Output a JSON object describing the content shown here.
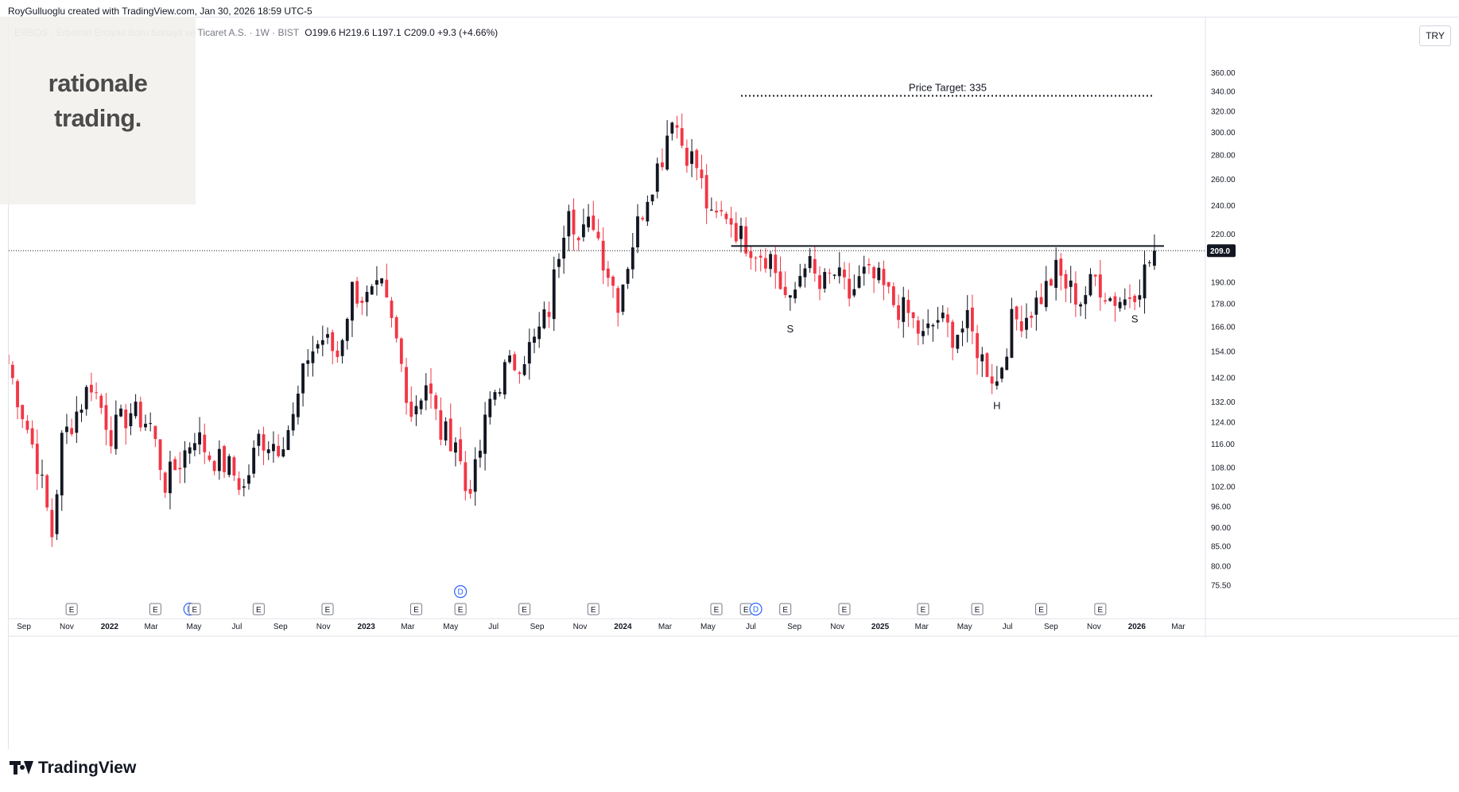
{
  "header": {
    "credit": "RoyGulluoglu created with TradingView.com, Jan 30, 2026 18:59 UTC-5",
    "symbol": "ERBOS · Erbosan Erciyas Boru Sanayii ve Ticaret A.S. · 1W · BIST",
    "o_label": "O",
    "o_value": "199.6",
    "h_label": "H",
    "h_value": "219.6",
    "l_label": "L",
    "l_value": "197.1",
    "c_label": "C",
    "c_value": "209.0",
    "change": "+9.3 (+4.66%)"
  },
  "logo": {
    "line1": "rationale",
    "line2": "trading."
  },
  "currency": "TRY",
  "footer": {
    "brand": "TradingView"
  },
  "colors": {
    "up": "#131722",
    "down": "#f23645",
    "price_label_bg": "#131722",
    "event_blue": "#2962ff"
  },
  "chart_data": {
    "type": "candlestick",
    "y_scale": "log",
    "y_range": [
      72,
      375
    ],
    "last_price": 209.0,
    "last_price_label": "209.0",
    "y_ticks": [
      {
        "v": 360,
        "label": "360.00"
      },
      {
        "v": 340,
        "label": "340.00"
      },
      {
        "v": 320,
        "label": "320.00"
      },
      {
        "v": 300,
        "label": "300.00"
      },
      {
        "v": 280,
        "label": "280.00"
      },
      {
        "v": 260,
        "label": "260.00"
      },
      {
        "v": 240,
        "label": "240.00"
      },
      {
        "v": 220,
        "label": "220.00"
      },
      {
        "v": 190,
        "label": "190.00"
      },
      {
        "v": 178,
        "label": "178.00"
      },
      {
        "v": 166,
        "label": "166.00"
      },
      {
        "v": 154,
        "label": "154.00"
      },
      {
        "v": 142,
        "label": "142.00"
      },
      {
        "v": 132,
        "label": "132.00"
      },
      {
        "v": 124,
        "label": "124.00"
      },
      {
        "v": 116,
        "label": "116.00"
      },
      {
        "v": 108,
        "label": "108.00"
      },
      {
        "v": 102,
        "label": "102.00"
      },
      {
        "v": 96,
        "label": "96.00"
      },
      {
        "v": 90,
        "label": "90.00"
      },
      {
        "v": 85,
        "label": "85.00"
      },
      {
        "v": 80,
        "label": "80.00"
      },
      {
        "v": 75.5,
        "label": "75.50"
      }
    ],
    "x_ticks": [
      {
        "date": "2021-09-01",
        "label": "Sep"
      },
      {
        "date": "2021-11-01",
        "label": "Nov"
      },
      {
        "date": "2022-01-01",
        "label": "2022"
      },
      {
        "date": "2022-03-01",
        "label": "Mar"
      },
      {
        "date": "2022-05-01",
        "label": "May"
      },
      {
        "date": "2022-07-01",
        "label": "Jul"
      },
      {
        "date": "2022-09-01",
        "label": "Sep"
      },
      {
        "date": "2022-11-01",
        "label": "Nov"
      },
      {
        "date": "2023-01-01",
        "label": "2023"
      },
      {
        "date": "2023-03-01",
        "label": "Mar"
      },
      {
        "date": "2023-05-01",
        "label": "May"
      },
      {
        "date": "2023-07-01",
        "label": "Jul"
      },
      {
        "date": "2023-09-01",
        "label": "Sep"
      },
      {
        "date": "2023-11-01",
        "label": "Nov"
      },
      {
        "date": "2024-01-01",
        "label": "2024"
      },
      {
        "date": "2024-03-01",
        "label": "Mar"
      },
      {
        "date": "2024-05-01",
        "label": "May"
      },
      {
        "date": "2024-07-01",
        "label": "Jul"
      },
      {
        "date": "2024-09-01",
        "label": "Sep"
      },
      {
        "date": "2024-11-01",
        "label": "Nov"
      },
      {
        "date": "2025-01-01",
        "label": "2025"
      },
      {
        "date": "2025-03-01",
        "label": "Mar"
      },
      {
        "date": "2025-05-01",
        "label": "May"
      },
      {
        "date": "2025-07-01",
        "label": "Jul"
      },
      {
        "date": "2025-09-01",
        "label": "Sep"
      },
      {
        "date": "2025-11-01",
        "label": "Nov"
      },
      {
        "date": "2026-01-01",
        "label": "2026"
      },
      {
        "date": "2026-03-01",
        "label": "Mar"
      }
    ],
    "anchors": [
      {
        "date": "2021-08-09",
        "price": 148
      },
      {
        "date": "2021-08-30",
        "price": 128
      },
      {
        "date": "2021-09-20",
        "price": 110
      },
      {
        "date": "2021-10-11",
        "price": 88
      },
      {
        "date": "2021-10-25",
        "price": 117
      },
      {
        "date": "2021-11-15",
        "price": 128
      },
      {
        "date": "2021-12-06",
        "price": 140
      },
      {
        "date": "2022-01-03",
        "price": 120
      },
      {
        "date": "2022-01-31",
        "price": 128
      },
      {
        "date": "2022-02-28",
        "price": 123
      },
      {
        "date": "2022-03-21",
        "price": 103
      },
      {
        "date": "2022-04-11",
        "price": 110
      },
      {
        "date": "2022-05-02",
        "price": 120
      },
      {
        "date": "2022-05-23",
        "price": 112
      },
      {
        "date": "2022-06-20",
        "price": 108
      },
      {
        "date": "2022-07-11",
        "price": 101
      },
      {
        "date": "2022-08-01",
        "price": 118
      },
      {
        "date": "2022-08-29",
        "price": 116
      },
      {
        "date": "2022-09-19",
        "price": 125
      },
      {
        "date": "2022-10-10",
        "price": 152
      },
      {
        "date": "2022-10-31",
        "price": 160
      },
      {
        "date": "2022-11-21",
        "price": 152
      },
      {
        "date": "2022-12-12",
        "price": 186
      },
      {
        "date": "2023-01-02",
        "price": 180
      },
      {
        "date": "2023-01-23",
        "price": 185
      },
      {
        "date": "2023-02-13",
        "price": 158
      },
      {
        "date": "2023-03-06",
        "price": 128
      },
      {
        "date": "2023-03-27",
        "price": 140
      },
      {
        "date": "2023-04-17",
        "price": 120
      },
      {
        "date": "2023-05-08",
        "price": 118
      },
      {
        "date": "2023-05-22",
        "price": 101
      },
      {
        "date": "2023-06-05",
        "price": 106
      },
      {
        "date": "2023-06-26",
        "price": 132
      },
      {
        "date": "2023-07-17",
        "price": 145
      },
      {
        "date": "2023-08-07",
        "price": 150
      },
      {
        "date": "2023-08-28",
        "price": 158
      },
      {
        "date": "2023-09-18",
        "price": 175
      },
      {
        "date": "2023-10-02",
        "price": 210
      },
      {
        "date": "2023-10-16",
        "price": 245
      },
      {
        "date": "2023-10-30",
        "price": 215
      },
      {
        "date": "2023-11-20",
        "price": 230
      },
      {
        "date": "2023-12-04",
        "price": 205
      },
      {
        "date": "2023-12-25",
        "price": 180
      },
      {
        "date": "2024-01-15",
        "price": 215
      },
      {
        "date": "2024-02-05",
        "price": 250
      },
      {
        "date": "2024-02-26",
        "price": 280
      },
      {
        "date": "2024-03-11",
        "price": 320
      },
      {
        "date": "2024-03-25",
        "price": 290
      },
      {
        "date": "2024-04-15",
        "price": 270
      },
      {
        "date": "2024-05-06",
        "price": 228
      },
      {
        "date": "2024-05-27",
        "price": 235
      },
      {
        "date": "2024-06-17",
        "price": 218
      },
      {
        "date": "2024-07-08",
        "price": 210
      },
      {
        "date": "2024-07-29",
        "price": 205
      },
      {
        "date": "2024-08-12",
        "price": 188
      },
      {
        "date": "2024-08-26",
        "price": 176
      },
      {
        "date": "2024-09-16",
        "price": 205
      },
      {
        "date": "2024-10-07",
        "price": 186
      },
      {
        "date": "2024-10-28",
        "price": 195
      },
      {
        "date": "2024-11-18",
        "price": 182
      },
      {
        "date": "2024-12-09",
        "price": 194
      },
      {
        "date": "2024-12-30",
        "price": 190
      },
      {
        "date": "2025-01-20",
        "price": 178
      },
      {
        "date": "2025-02-10",
        "price": 172
      },
      {
        "date": "2025-03-03",
        "price": 160
      },
      {
        "date": "2025-03-24",
        "price": 170
      },
      {
        "date": "2025-04-14",
        "price": 162
      },
      {
        "date": "2025-05-05",
        "price": 167
      },
      {
        "date": "2025-05-26",
        "price": 150
      },
      {
        "date": "2025-06-16",
        "price": 140
      },
      {
        "date": "2025-07-07",
        "price": 168
      },
      {
        "date": "2025-07-28",
        "price": 172
      },
      {
        "date": "2025-08-18",
        "price": 182
      },
      {
        "date": "2025-09-08",
        "price": 196
      },
      {
        "date": "2025-09-22",
        "price": 188
      },
      {
        "date": "2025-10-13",
        "price": 180
      },
      {
        "date": "2025-11-03",
        "price": 192
      },
      {
        "date": "2025-11-24",
        "price": 181
      },
      {
        "date": "2025-12-15",
        "price": 180
      },
      {
        "date": "2026-01-05",
        "price": 190
      },
      {
        "date": "2026-01-26",
        "price": 209
      }
    ],
    "last_candle": {
      "date": "2026-01-26",
      "o": 199.6,
      "h": 219.6,
      "l": 197.1,
      "c": 209.0
    },
    "neckline": {
      "price": 212,
      "start": "2024-06-03",
      "end": "2026-01-26"
    },
    "target_line": {
      "price": 335,
      "start": "2024-06-17",
      "end": "2026-01-26",
      "label": "Price Target: 335"
    },
    "annotations": [
      {
        "text": "S",
        "date": "2024-08-26",
        "price": 163
      },
      {
        "text": "H",
        "date": "2025-06-16",
        "price": 129
      },
      {
        "text": "S",
        "date": "2025-12-29",
        "price": 168
      }
    ],
    "event_markers": [
      {
        "type": "E",
        "date": "2021-11-08"
      },
      {
        "type": "E",
        "date": "2022-03-07"
      },
      {
        "type": "D",
        "date": "2022-04-25"
      },
      {
        "type": "E",
        "date": "2022-05-02"
      },
      {
        "type": "E",
        "date": "2022-08-01"
      },
      {
        "type": "E",
        "date": "2022-11-07"
      },
      {
        "type": "E",
        "date": "2023-03-13"
      },
      {
        "type": "D",
        "date": "2023-05-15",
        "raised": true
      },
      {
        "type": "E",
        "date": "2023-05-15"
      },
      {
        "type": "E",
        "date": "2023-08-14"
      },
      {
        "type": "E",
        "date": "2023-11-20"
      },
      {
        "type": "E",
        "date": "2024-05-13"
      },
      {
        "type": "E",
        "date": "2024-06-24"
      },
      {
        "type": "D",
        "date": "2024-07-08"
      },
      {
        "type": "E",
        "date": "2024-08-19"
      },
      {
        "type": "E",
        "date": "2024-11-11"
      },
      {
        "type": "E",
        "date": "2025-03-03"
      },
      {
        "type": "E",
        "date": "2025-05-19"
      },
      {
        "type": "E",
        "date": "2025-08-18"
      },
      {
        "type": "E",
        "date": "2025-11-10"
      }
    ]
  }
}
